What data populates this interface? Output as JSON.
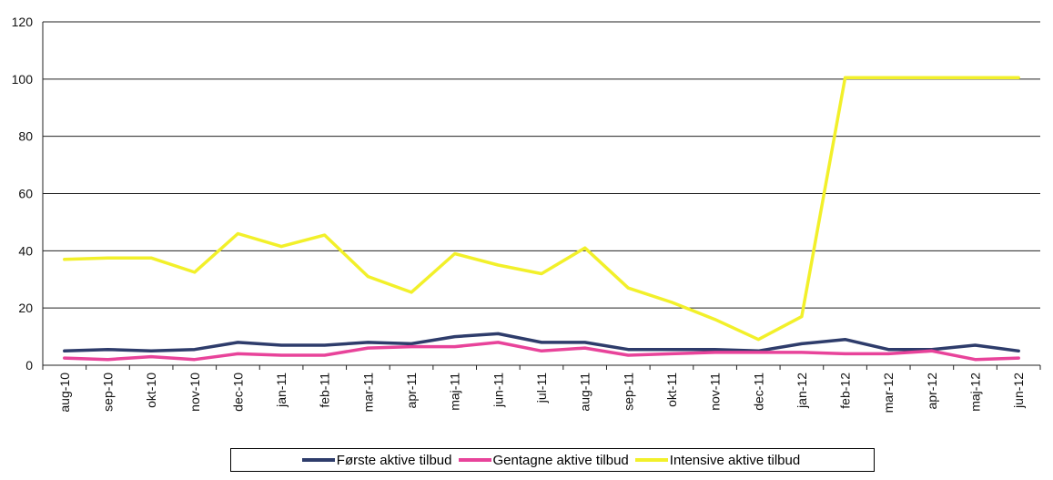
{
  "chart_data": {
    "type": "line",
    "title": "",
    "xlabel": "",
    "ylabel": "",
    "ylim": [
      0,
      120
    ],
    "yticks": [
      0,
      20,
      40,
      60,
      80,
      100,
      120
    ],
    "grid": true,
    "legend_position": "bottom",
    "categories": [
      "aug-10",
      "sep-10",
      "okt-10",
      "nov-10",
      "dec-10",
      "jan-11",
      "feb-11",
      "mar-11",
      "apr-11",
      "maj-11",
      "jun-11",
      "jul-11",
      "aug-11",
      "sep-11",
      "okt-11",
      "nov-11",
      "dec-11",
      "jan-12",
      "feb-12",
      "mar-12",
      "apr-12",
      "maj-12",
      "jun-12"
    ],
    "series": [
      {
        "name": "Første aktive tilbud",
        "color": "#2e3c6b",
        "values": [
          5,
          5.5,
          5,
          5.5,
          8,
          7,
          7,
          8,
          7.5,
          10,
          11,
          8,
          8,
          5.5,
          5.5,
          5.5,
          5,
          7.5,
          9,
          5.5,
          5.5,
          7,
          5
        ]
      },
      {
        "name": "Gentagne aktive tilbud",
        "color": "#e8439a",
        "values": [
          2.5,
          2,
          3,
          2,
          4,
          3.5,
          3.5,
          6,
          6.5,
          6.5,
          8,
          5,
          6,
          3.5,
          4,
          4.5,
          4.5,
          4.5,
          4,
          4,
          5,
          2,
          2.5
        ]
      },
      {
        "name": "Intensive aktive tilbud",
        "color": "#f2f02a",
        "values": [
          37,
          37.5,
          37.5,
          32.5,
          46,
          41.5,
          45.5,
          31,
          25.5,
          39,
          35,
          32,
          41,
          27,
          22,
          16,
          9,
          17,
          100.5,
          100.5,
          100.5,
          100.5,
          100.5
        ]
      }
    ]
  }
}
